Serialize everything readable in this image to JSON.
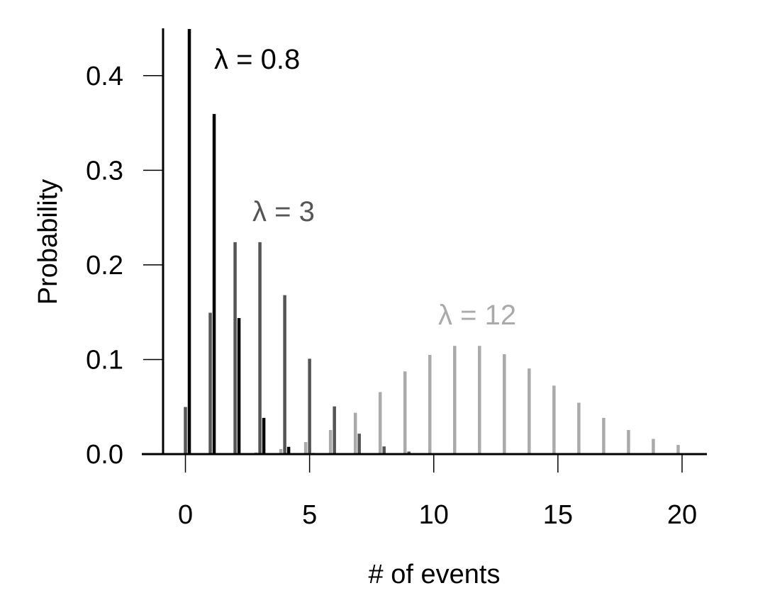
{
  "chart_data": {
    "type": "bar",
    "xlabel": "# of events",
    "ylabel": "Probability",
    "xlim": [
      -0.9,
      21
    ],
    "ylim": [
      0,
      0.45
    ],
    "x_ticks": [
      0,
      5,
      10,
      15,
      20
    ],
    "y_ticks": [
      "0.0",
      "0.1",
      "0.2",
      "0.3",
      "0.4"
    ],
    "grid": false,
    "x": [
      0,
      1,
      2,
      3,
      4,
      5,
      6,
      7,
      8,
      9,
      10,
      11,
      12,
      13,
      14,
      15,
      16,
      17,
      18,
      19,
      20
    ],
    "series": [
      {
        "name": "λ = 12",
        "color": "#aaaaaa",
        "values": [
          0.0,
          0.0001,
          0.0004,
          0.0018,
          0.0053,
          0.0127,
          0.0255,
          0.0437,
          0.0655,
          0.0874,
          0.1048,
          0.1144,
          0.1144,
          0.1056,
          0.0905,
          0.0724,
          0.0543,
          0.0383,
          0.0255,
          0.0161,
          0.0097
        ]
      },
      {
        "name": "λ = 3",
        "color": "#555555",
        "values": [
          0.0498,
          0.1494,
          0.224,
          0.224,
          0.168,
          0.1008,
          0.0504,
          0.0216,
          0.0081,
          0.0027,
          0.0008,
          0.0002,
          0.0001,
          0.0,
          0.0,
          0.0,
          0.0,
          0.0,
          0.0,
          0.0,
          0.0
        ]
      },
      {
        "name": "λ = 0.8",
        "color": "#000000",
        "values": [
          0.4493,
          0.3595,
          0.1438,
          0.0383,
          0.0077,
          0.0012,
          0.0002,
          0.0,
          0.0,
          0.0,
          0.0,
          0.0,
          0.0,
          0.0,
          0.0,
          0.0,
          0.0,
          0.0,
          0.0,
          0.0,
          0.0
        ]
      }
    ]
  }
}
